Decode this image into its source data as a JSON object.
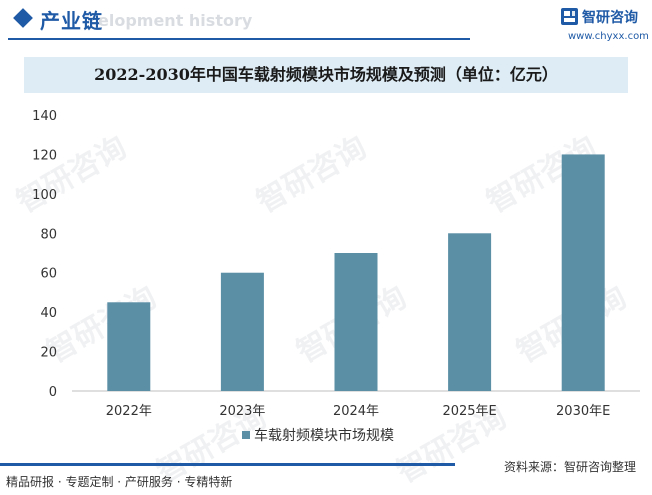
{
  "header": {
    "section_title": "产业链",
    "section_watermark": "elopment history",
    "brand_name": "智研咨询",
    "brand_url": "www.chyxx.com"
  },
  "watermark_text": "智研咨询",
  "footer": {
    "left_text": "精品研报 · 专题定制 · 产研服务 · 专精特新",
    "source_text": "资料来源：智研咨询整理"
  },
  "colors": {
    "brand": "#1f5aa6",
    "bar": "#5b8fa6",
    "title_band": "#deecf5"
  },
  "chart_data": {
    "type": "bar",
    "title": "2022-2030年中国车载射频模块市场规模及预测（单位：亿元）",
    "categories": [
      "2022年",
      "2023年",
      "2024年",
      "2025年E",
      "2030年E"
    ],
    "series": [
      {
        "name": "车载射频模块市场规模",
        "values": [
          45,
          60,
          70,
          80,
          120
        ]
      }
    ],
    "ylim": [
      0,
      140
    ],
    "yticks": [
      0,
      20,
      40,
      60,
      80,
      100,
      120,
      140
    ],
    "grid": false,
    "legend_position": "bottom"
  }
}
